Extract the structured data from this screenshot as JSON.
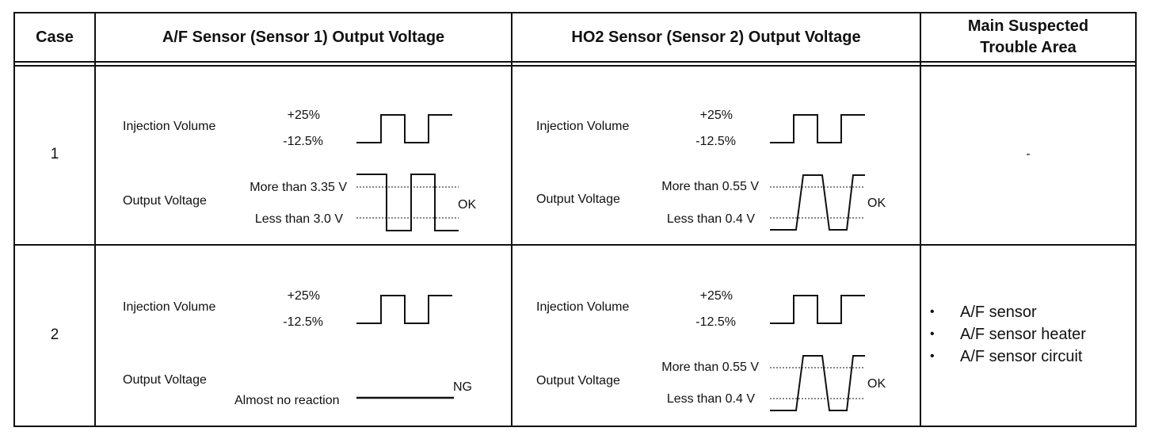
{
  "headers": {
    "case": "Case",
    "af_sensor": "A/F Sensor (Sensor 1) Output Voltage",
    "ho2_sensor": "HO2 Sensor (Sensor 2) Output Voltage",
    "trouble_area_line1": "Main Suspected",
    "trouble_area_line2": "Trouble Area"
  },
  "rows": [
    {
      "case": "1",
      "af": {
        "injection_label": "Injection Volume",
        "inj_high": "+25%",
        "inj_low": "-12.5%",
        "output_label": "Output Voltage",
        "thresh_high": "More than 3.35 V",
        "thresh_low": "Less than 3.0 V",
        "result": "OK"
      },
      "ho2": {
        "injection_label": "Injection Volume",
        "inj_high": "+25%",
        "inj_low": "-12.5%",
        "output_label": "Output Voltage",
        "thresh_high": "More than 0.55 V",
        "thresh_low": "Less than 0.4 V",
        "result": "OK"
      },
      "trouble": "-"
    },
    {
      "case": "2",
      "af": {
        "injection_label": "Injection Volume",
        "inj_high": "+25%",
        "inj_low": "-12.5%",
        "output_label": "Output Voltage",
        "no_reaction": "Almost no reaction",
        "result": "NG"
      },
      "ho2": {
        "injection_label": "Injection Volume",
        "inj_high": "+25%",
        "inj_low": "-12.5%",
        "output_label": "Output Voltage",
        "thresh_high": "More than 0.55 V",
        "thresh_low": "Less than 0.4 V",
        "result": "OK"
      },
      "trouble_items": [
        "A/F sensor",
        "A/F sensor heater",
        "A/F sensor circuit"
      ]
    }
  ]
}
